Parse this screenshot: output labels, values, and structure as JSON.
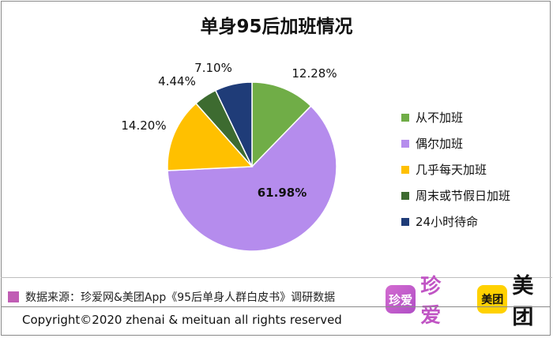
{
  "chart_data": {
    "type": "pie",
    "title": "单身95后加班情况",
    "categories": [
      "从不加班",
      "偶尔加班",
      "几乎每天加班",
      "周末或节假日加班",
      "24小时待命"
    ],
    "values": [
      12.28,
      61.98,
      14.2,
      4.44,
      7.1
    ],
    "value_labels": [
      "12.28%",
      "61.98%",
      "14.20%",
      "4.44%",
      "7.10%"
    ],
    "colors": [
      "#70ad47",
      "#b58ced",
      "#ffc000",
      "#3d6b30",
      "#1f3c78"
    ],
    "legend_placement": "right"
  },
  "source": "数据来源：珍爱网&美团App《95后单身人群白皮书》调研数据",
  "logos": {
    "zhenai_icon_text": "珍爱",
    "zhenai_wordmark": "珍爱",
    "meituan_icon_text": "美团",
    "meituan_wordmark": "美团"
  },
  "copyright": "Copyright©2020 zhenai & meituan all rights reserved"
}
